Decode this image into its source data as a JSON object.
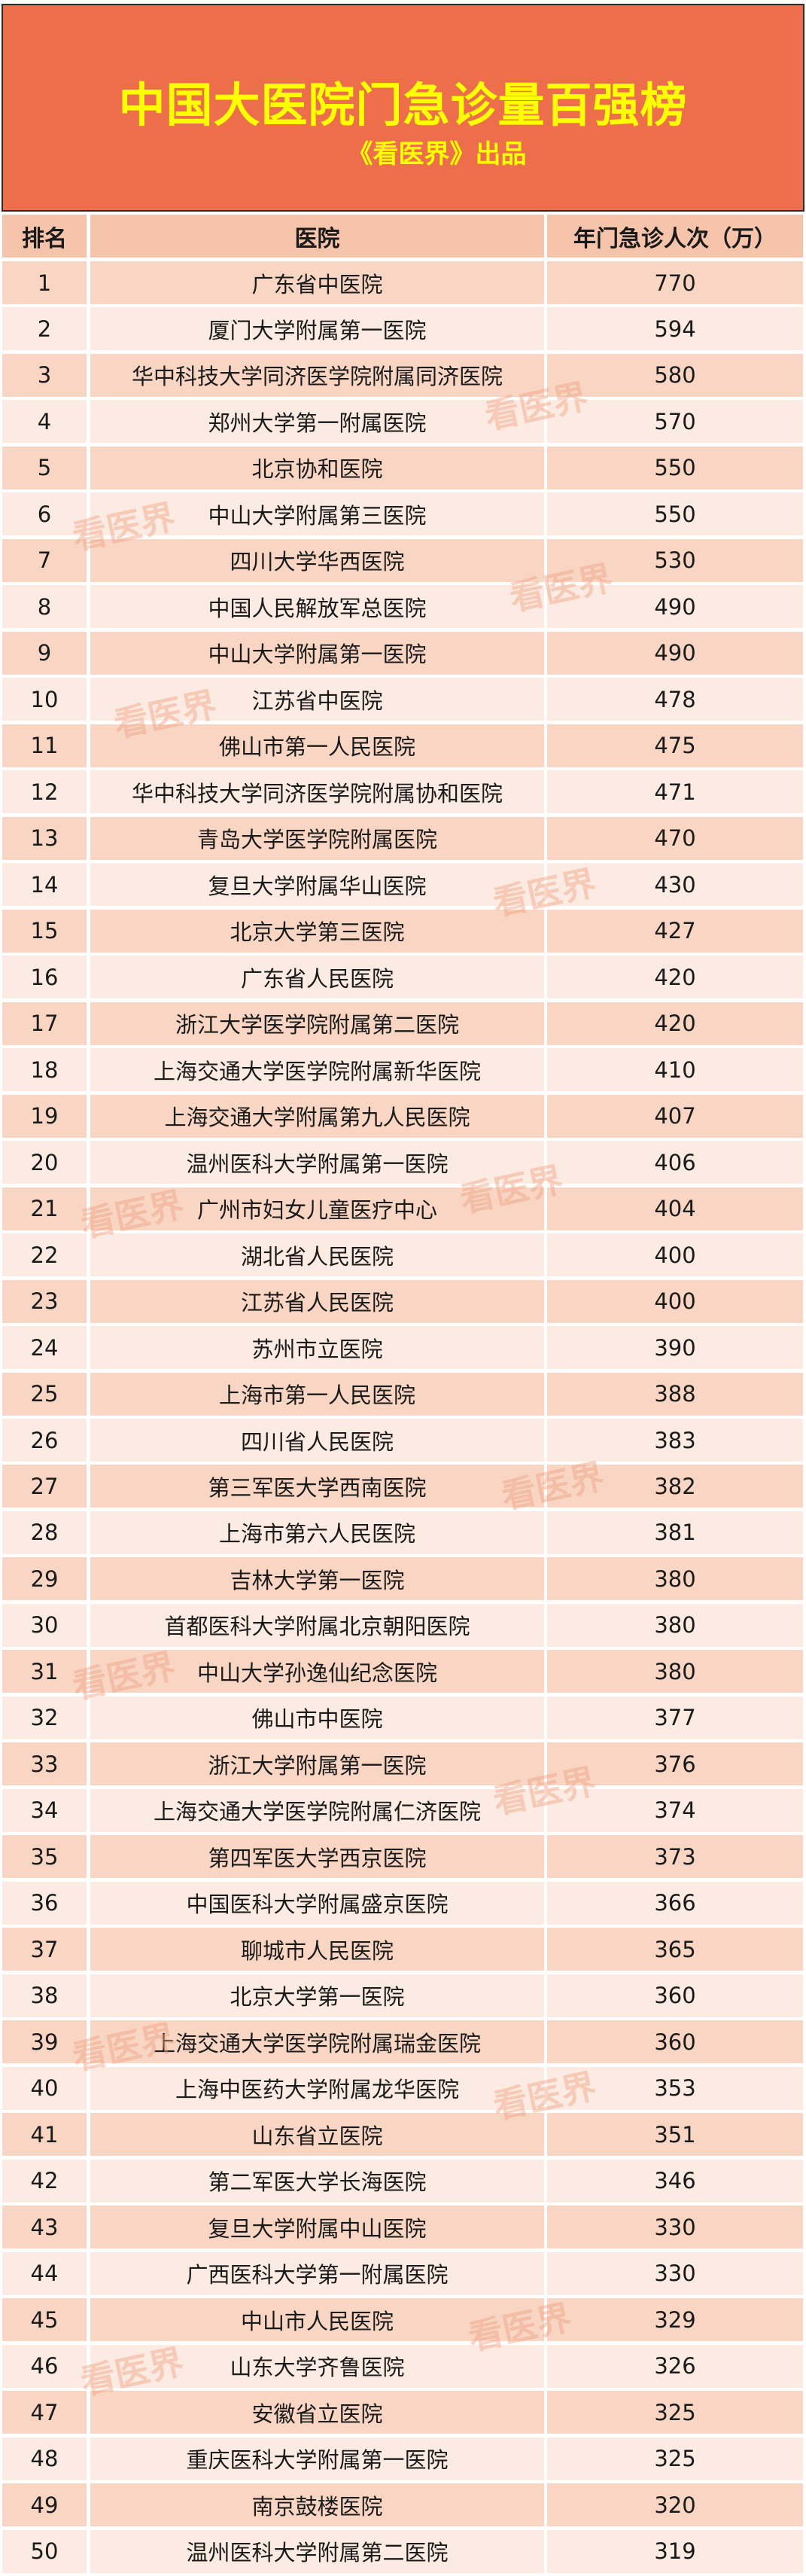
{
  "banner": {
    "title": "中国大医院门急诊量百强榜",
    "subtitle": "《看医界》出品"
  },
  "colors": {
    "banner": "#ec6e4a",
    "title": "#ffff00",
    "header": "#f6c4ab",
    "row_odd": "#f9d6c4",
    "row_even": "#fcebe2",
    "watermark": "#f0a383"
  },
  "watermark": "看医界",
  "table": {
    "headers": [
      "排名",
      "医院",
      "年门急诊人次（万）"
    ],
    "rows": [
      [
        "1",
        "广东省中医院",
        "770"
      ],
      [
        "2",
        "厦门大学附属第一医院",
        "594"
      ],
      [
        "3",
        "华中科技大学同济医学院附属同济医院",
        "580"
      ],
      [
        "4",
        "郑州大学第一附属医院",
        "570"
      ],
      [
        "5",
        "北京协和医院",
        "550"
      ],
      [
        "6",
        "中山大学附属第三医院",
        "550"
      ],
      [
        "7",
        "四川大学华西医院",
        "530"
      ],
      [
        "8",
        "中国人民解放军总医院",
        "490"
      ],
      [
        "9",
        "中山大学附属第一医院",
        "490"
      ],
      [
        "10",
        "江苏省中医院",
        "478"
      ],
      [
        "11",
        "佛山市第一人民医院",
        "475"
      ],
      [
        "12",
        "华中科技大学同济医学院附属协和医院",
        "471"
      ],
      [
        "13",
        "青岛大学医学院附属医院",
        "470"
      ],
      [
        "14",
        "复旦大学附属华山医院",
        "430"
      ],
      [
        "15",
        "北京大学第三医院",
        "427"
      ],
      [
        "16",
        "广东省人民医院",
        "420"
      ],
      [
        "17",
        "浙江大学医学院附属第二医院",
        "420"
      ],
      [
        "18",
        "上海交通大学医学院附属新华医院",
        "410"
      ],
      [
        "19",
        "上海交通大学附属第九人民医院",
        "407"
      ],
      [
        "20",
        "温州医科大学附属第一医院",
        "406"
      ],
      [
        "21",
        "广州市妇女儿童医疗中心",
        "404"
      ],
      [
        "22",
        "湖北省人民医院",
        "400"
      ],
      [
        "23",
        "江苏省人民医院",
        "400"
      ],
      [
        "24",
        "苏州市立医院",
        "390"
      ],
      [
        "25",
        "上海市第一人民医院",
        "388"
      ],
      [
        "26",
        "四川省人民医院",
        "383"
      ],
      [
        "27",
        "第三军医大学西南医院",
        "382"
      ],
      [
        "28",
        "上海市第六人民医院",
        "381"
      ],
      [
        "29",
        "吉林大学第一医院",
        "380"
      ],
      [
        "30",
        "首都医科大学附属北京朝阳医院",
        "380"
      ],
      [
        "31",
        "中山大学孙逸仙纪念医院",
        "380"
      ],
      [
        "32",
        "佛山市中医院",
        "377"
      ],
      [
        "33",
        "浙江大学附属第一医院",
        "376"
      ],
      [
        "34",
        "上海交通大学医学院附属仁济医院",
        "374"
      ],
      [
        "35",
        "第四军医大学西京医院",
        "373"
      ],
      [
        "36",
        "中国医科大学附属盛京医院",
        "366"
      ],
      [
        "37",
        "聊城市人民医院",
        "365"
      ],
      [
        "38",
        "北京大学第一医院",
        "360"
      ],
      [
        "39",
        "上海交通大学医学院附属瑞金医院",
        "360"
      ],
      [
        "40",
        "上海中医药大学附属龙华医院",
        "353"
      ],
      [
        "41",
        "山东省立医院",
        "351"
      ],
      [
        "42",
        "第二军医大学长海医院",
        "346"
      ],
      [
        "43",
        "复旦大学附属中山医院",
        "330"
      ],
      [
        "44",
        "广西医科大学第一附属医院",
        "330"
      ],
      [
        "45",
        "中山市人民医院",
        "329"
      ],
      [
        "46",
        "山东大学齐鲁医院",
        "326"
      ],
      [
        "47",
        "安徽省立医院",
        "325"
      ],
      [
        "48",
        "重庆医科大学附属第一医院",
        "325"
      ],
      [
        "49",
        "南京鼓楼医院",
        "320"
      ],
      [
        "50",
        "温州医科大学附属第二医院",
        "319"
      ]
    ]
  }
}
